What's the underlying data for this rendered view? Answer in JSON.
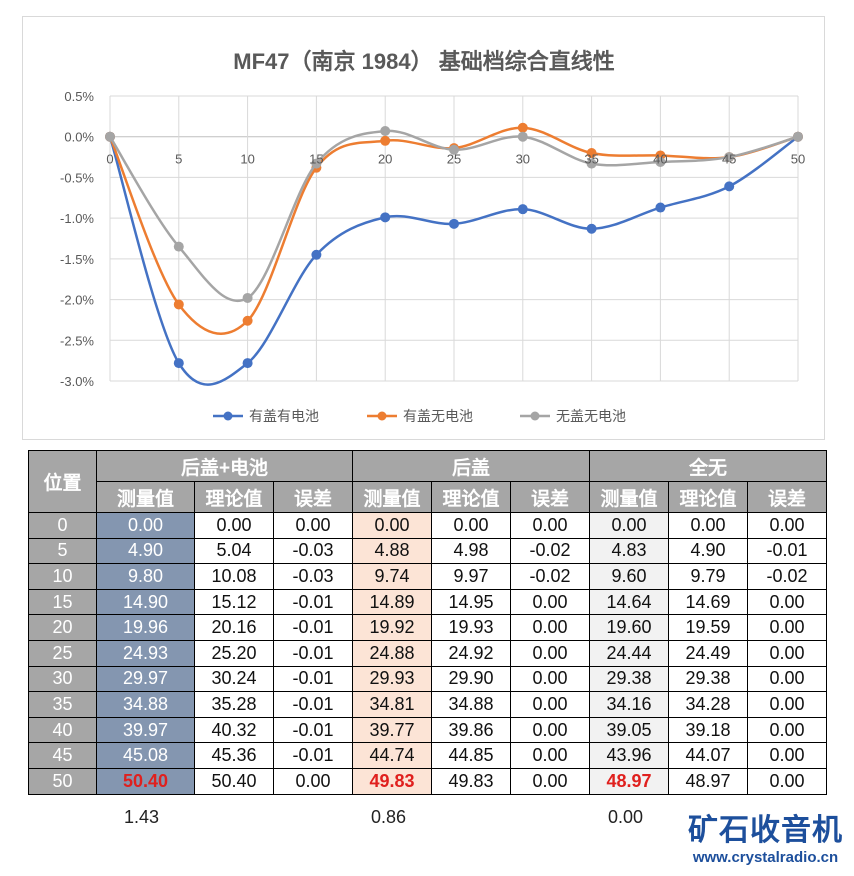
{
  "chart_data": {
    "type": "line",
    "title": "MF47（南京 1984） 基础档综合直线性",
    "x": [
      0,
      5,
      10,
      15,
      20,
      25,
      30,
      35,
      40,
      45,
      50
    ],
    "x_ticks": [
      "0",
      "5",
      "10",
      "15",
      "20",
      "25",
      "30",
      "35",
      "40",
      "45",
      "50"
    ],
    "y_ticks": [
      "0.5%",
      "0.0%",
      "-0.5%",
      "-1.0%",
      "-1.5%",
      "-2.0%",
      "-2.5%",
      "-3.0%"
    ],
    "ylim": [
      -3.0,
      0.5
    ],
    "grid": true,
    "legend": "bottom",
    "series": [
      {
        "name": "有盖有电池",
        "color": "#4472c4",
        "values": [
          0,
          -2.78,
          -2.78,
          -1.45,
          -0.99,
          -1.07,
          -0.89,
          -1.13,
          -0.87,
          -0.61,
          0
        ]
      },
      {
        "name": "有盖无电池",
        "color": "#ed7d31",
        "values": [
          0,
          -2.06,
          -2.26,
          -0.38,
          -0.05,
          -0.14,
          0.11,
          -0.2,
          -0.23,
          -0.25,
          0
        ]
      },
      {
        "name": "无盖无电池",
        "color": "#a5a5a5",
        "values": [
          0,
          -1.35,
          -1.98,
          -0.33,
          0.07,
          -0.16,
          0.0,
          -0.33,
          -0.31,
          -0.25,
          0
        ]
      }
    ]
  },
  "table": {
    "pos_header": "位置",
    "groups": [
      "后盖+电池",
      "后盖",
      "全无"
    ],
    "sub_headers": [
      "测量值",
      "理论值",
      "误差"
    ],
    "rows": [
      [
        "0",
        "0.00",
        "0.00",
        "0.00",
        "0.00",
        "0.00",
        "0.00",
        "0.00",
        "0.00",
        "0.00"
      ],
      [
        "5",
        "4.90",
        "5.04",
        "-0.03",
        "4.88",
        "4.98",
        "-0.02",
        "4.83",
        "4.90",
        "-0.01"
      ],
      [
        "10",
        "9.80",
        "10.08",
        "-0.03",
        "9.74",
        "9.97",
        "-0.02",
        "9.60",
        "9.79",
        "-0.02"
      ],
      [
        "15",
        "14.90",
        "15.12",
        "-0.01",
        "14.89",
        "14.95",
        "0.00",
        "14.64",
        "14.69",
        "0.00"
      ],
      [
        "20",
        "19.96",
        "20.16",
        "-0.01",
        "19.92",
        "19.93",
        "0.00",
        "19.60",
        "19.59",
        "0.00"
      ],
      [
        "25",
        "24.93",
        "25.20",
        "-0.01",
        "24.88",
        "24.92",
        "0.00",
        "24.44",
        "24.49",
        "0.00"
      ],
      [
        "30",
        "29.97",
        "30.24",
        "-0.01",
        "29.93",
        "29.90",
        "0.00",
        "29.38",
        "29.38",
        "0.00"
      ],
      [
        "35",
        "34.88",
        "35.28",
        "-0.01",
        "34.81",
        "34.88",
        "0.00",
        "34.16",
        "34.28",
        "0.00"
      ],
      [
        "40",
        "39.97",
        "40.32",
        "-0.01",
        "39.77",
        "39.86",
        "0.00",
        "39.05",
        "39.18",
        "0.00"
      ],
      [
        "45",
        "45.08",
        "45.36",
        "-0.01",
        "44.74",
        "44.85",
        "0.00",
        "43.96",
        "44.07",
        "0.00"
      ],
      [
        "50",
        "50.40",
        "50.40",
        "0.00",
        "49.83",
        "49.83",
        "0.00",
        "48.97",
        "48.97",
        "0.00"
      ]
    ],
    "footer": [
      "1.43",
      "0.86",
      "0.00"
    ]
  },
  "logo": {
    "name": "矿石收音机",
    "url": "www.crystalradio.cn"
  }
}
